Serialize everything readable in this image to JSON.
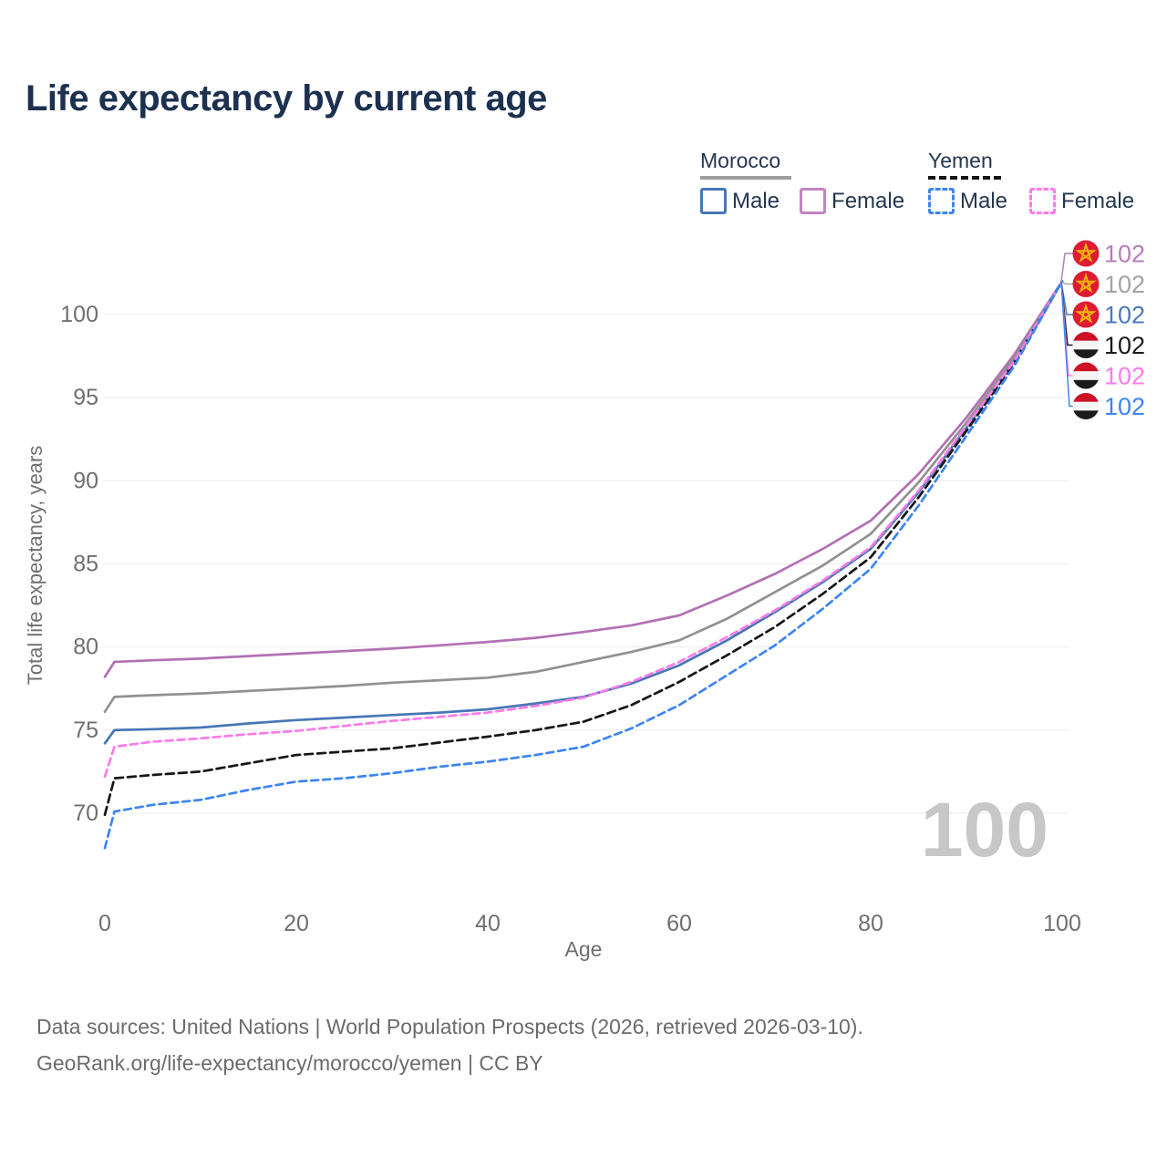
{
  "title": "Life expectancy by current age",
  "watermark": "100",
  "legend": {
    "groups": [
      {
        "country": "Morocco",
        "line_style": "solid",
        "line_color": "#9e9e9e",
        "items": [
          {
            "label": "Male",
            "color": "#4677b4",
            "dashed": false
          },
          {
            "label": "Female",
            "color": "#c184bf",
            "dashed": false
          }
        ]
      },
      {
        "country": "Yemen",
        "line_style": "dashed",
        "line_color": "#141414",
        "items": [
          {
            "label": "Male",
            "color": "#3d85f0",
            "dashed": true
          },
          {
            "label": "Female",
            "color": "#fb7be8",
            "dashed": true
          }
        ]
      }
    ]
  },
  "footer": {
    "line1": "Data sources: United Nations | World Population Prospects (2026, retrieved 2026-03-10).",
    "line2": "GeoRank.org/life-expectancy/morocco/yemen | CC BY"
  },
  "chart_data": {
    "type": "line",
    "title": "Life expectancy by current age",
    "xlabel": "Age",
    "ylabel": "Total life expectancy, years",
    "x_ticks": [
      0,
      20,
      40,
      60,
      80,
      100
    ],
    "y_ticks": [
      70,
      75,
      80,
      85,
      90,
      95,
      100
    ],
    "xlim": [
      0,
      100
    ],
    "ylim": [
      66.5,
      103
    ],
    "grid": "horizontal",
    "grid_color": "#ececec",
    "axis_text_color": "#6f6f6f",
    "x": [
      0,
      1,
      5,
      10,
      15,
      20,
      25,
      30,
      35,
      40,
      45,
      50,
      55,
      60,
      65,
      70,
      75,
      80,
      85,
      90,
      95,
      100
    ],
    "series": [
      {
        "name": "Morocco Female",
        "country": "Morocco",
        "sex": "Female",
        "flag": "morocco",
        "color": "#b271b3",
        "dash": null,
        "label_color": "#b87cbb",
        "label_row": 0,
        "end_label": "102",
        "values": [
          78.2,
          79.1,
          79.2,
          79.3,
          79.45,
          79.6,
          79.75,
          79.9,
          80.1,
          80.3,
          80.55,
          80.9,
          81.3,
          81.9,
          83.1,
          84.4,
          85.9,
          87.6,
          90.4,
          93.8,
          97.6,
          102
        ]
      },
      {
        "name": "Morocco Both sexes",
        "country": "Morocco",
        "sex": "Both",
        "flag": "morocco",
        "color": "#919191",
        "dash": null,
        "label_color": "#a3a3a3",
        "label_row": 1,
        "end_label": "102",
        "values": [
          76.1,
          77.0,
          77.1,
          77.2,
          77.35,
          77.5,
          77.65,
          77.85,
          78.0,
          78.15,
          78.5,
          79.1,
          79.7,
          80.4,
          81.7,
          83.3,
          84.9,
          86.8,
          89.9,
          93.5,
          97.4,
          102
        ]
      },
      {
        "name": "Morocco Male",
        "country": "Morocco",
        "sex": "Male",
        "flag": "morocco",
        "color": "#4677b4",
        "dash": null,
        "label_color": "#4a7ab8",
        "label_row": 2,
        "end_label": "102",
        "values": [
          74.2,
          75.0,
          75.05,
          75.15,
          75.4,
          75.6,
          75.75,
          75.9,
          76.05,
          76.25,
          76.6,
          77.0,
          77.8,
          78.9,
          80.4,
          82.1,
          83.9,
          85.9,
          89.3,
          93.2,
          97.2,
          102
        ]
      },
      {
        "name": "Yemen Both sexes",
        "country": "Yemen",
        "sex": "Both",
        "flag": "yemen",
        "color": "#161616",
        "dash": "9 5",
        "label_color": "#1a1a1a",
        "label_row": 3,
        "end_label": "102",
        "values": [
          69.9,
          72.1,
          72.3,
          72.5,
          73.0,
          73.5,
          73.7,
          73.9,
          74.25,
          74.6,
          75.0,
          75.5,
          76.5,
          77.9,
          79.5,
          81.2,
          83.2,
          85.4,
          89.0,
          93.0,
          97.1,
          102
        ]
      },
      {
        "name": "Yemen Female",
        "country": "Yemen",
        "sex": "Female",
        "flag": "yemen",
        "color": "#fb7be8",
        "dash": "8 5",
        "label_color": "#fb7be8",
        "label_row": 4,
        "end_label": "102",
        "values": [
          72.2,
          74.0,
          74.3,
          74.5,
          74.75,
          74.95,
          75.25,
          75.55,
          75.8,
          76.05,
          76.45,
          76.95,
          77.9,
          79.1,
          80.6,
          82.2,
          84.0,
          86.0,
          89.4,
          93.3,
          97.2,
          102
        ]
      },
      {
        "name": "Yemen Male",
        "country": "Yemen",
        "sex": "Male",
        "flag": "yemen",
        "color": "#3d85f0",
        "dash": "8 5",
        "label_color": "#3d85f0",
        "label_row": 5,
        "end_label": "102",
        "values": [
          67.9,
          70.1,
          70.5,
          70.8,
          71.4,
          71.9,
          72.1,
          72.4,
          72.8,
          73.1,
          73.5,
          74.0,
          75.1,
          76.5,
          78.3,
          80.1,
          82.3,
          84.7,
          88.5,
          92.7,
          96.9,
          102
        ]
      }
    ],
    "flag_colors": {
      "morocco_red": "#de1b33",
      "morocco_star": "#f2b705",
      "yemen_red": "#ce1126",
      "yemen_white": "#f4f4f4",
      "yemen_black": "#1b1b1b"
    }
  }
}
